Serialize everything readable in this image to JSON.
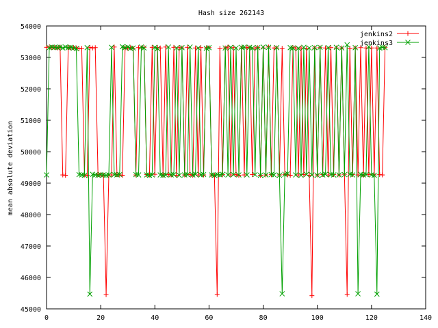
{
  "chart_data": {
    "type": "line",
    "title": "Hash size 262143",
    "xlabel": "",
    "ylabel": "mean absolute deviation",
    "xlim": [
      0,
      140
    ],
    "ylim": [
      45000,
      54000
    ],
    "x_ticks": [
      0,
      20,
      40,
      60,
      80,
      100,
      120,
      140
    ],
    "y_ticks": [
      45000,
      46000,
      47000,
      48000,
      49000,
      50000,
      51000,
      52000,
      53000,
      54000
    ],
    "grid": false,
    "legend_position": "top-right",
    "series": [
      {
        "name": "jenkins2",
        "color": "#ff0000",
        "marker": "plus",
        "x": [
          0,
          1,
          2,
          3,
          4,
          5,
          6,
          7,
          8,
          9,
          10,
          11,
          12,
          13,
          14,
          15,
          16,
          17,
          18,
          19,
          20,
          21,
          22,
          23,
          24,
          25,
          26,
          27,
          28,
          29,
          30,
          31,
          32,
          33,
          34,
          35,
          36,
          37,
          38,
          39,
          40,
          41,
          42,
          43,
          44,
          45,
          46,
          47,
          48,
          49,
          50,
          51,
          52,
          53,
          54,
          55,
          56,
          57,
          58,
          59,
          60,
          61,
          62,
          63,
          64,
          65,
          66,
          67,
          68,
          69,
          70,
          71,
          72,
          73,
          74,
          75,
          76,
          77,
          78,
          79,
          80,
          81,
          82,
          83,
          84,
          85,
          86,
          87,
          88,
          89,
          90,
          91,
          92,
          93,
          94,
          95,
          96,
          97,
          98,
          99,
          100,
          101,
          102,
          103,
          104,
          105,
          106,
          107,
          108,
          109,
          110,
          111,
          112,
          113,
          114,
          115,
          116,
          117,
          118,
          119,
          120,
          121,
          122,
          123,
          124,
          125
        ],
        "y": [
          53320,
          53330,
          53310,
          53320,
          53300,
          53330,
          49260,
          49250,
          53320,
          53300,
          53310,
          53300,
          53280,
          53290,
          49260,
          49250,
          53320,
          53300,
          53310,
          49270,
          49260,
          49250,
          45450,
          49260,
          49260,
          53330,
          49270,
          49260,
          49250,
          53300,
          53290,
          53310,
          53290,
          49260,
          53310,
          53300,
          53320,
          49270,
          49260,
          53320,
          49280,
          53310,
          53300,
          49260,
          53330,
          49270,
          49260,
          53320,
          49250,
          53310,
          53300,
          49260,
          53320,
          49270,
          49250,
          53300,
          49260,
          53310,
          49260,
          53300,
          53310,
          49260,
          49250,
          45460,
          53290,
          49270,
          53300,
          53330,
          49260,
          53310,
          49270,
          49250,
          53300,
          49260,
          53320,
          53300,
          49270,
          53300,
          53310,
          49250,
          53300,
          49260,
          53330,
          49270,
          53300,
          53300,
          49260,
          53290,
          49270,
          49260,
          49250,
          53310,
          53300,
          49260,
          53300,
          49270,
          53290,
          49250,
          45420,
          53300,
          49260,
          53310,
          49270,
          53300,
          49260,
          53310,
          49270,
          53300,
          49260,
          53300,
          49280,
          45460,
          53290,
          49270,
          53300,
          49260,
          53310,
          49250,
          53300,
          49270,
          53300,
          49260,
          53300,
          49270,
          49260,
          53320
        ]
      },
      {
        "name": "jenkins3",
        "color": "#00a000",
        "marker": "x",
        "x": [
          0,
          1,
          2,
          3,
          4,
          5,
          6,
          7,
          8,
          9,
          10,
          11,
          12,
          13,
          14,
          15,
          16,
          17,
          18,
          19,
          20,
          21,
          22,
          23,
          24,
          25,
          26,
          27,
          28,
          29,
          30,
          31,
          32,
          33,
          34,
          35,
          36,
          37,
          38,
          39,
          40,
          41,
          42,
          43,
          44,
          45,
          46,
          47,
          48,
          49,
          50,
          51,
          52,
          53,
          54,
          55,
          56,
          57,
          58,
          59,
          60,
          61,
          62,
          63,
          64,
          65,
          66,
          67,
          68,
          69,
          70,
          71,
          72,
          73,
          74,
          75,
          76,
          77,
          78,
          79,
          80,
          81,
          82,
          83,
          84,
          85,
          86,
          87,
          88,
          89,
          90,
          91,
          92,
          93,
          94,
          95,
          96,
          97,
          98,
          99,
          100,
          101,
          102,
          103,
          104,
          105,
          106,
          107,
          108,
          109,
          110,
          111,
          112,
          113,
          114,
          115,
          116,
          117,
          118,
          119,
          120,
          121,
          122,
          123,
          124,
          125
        ],
        "y": [
          49260,
          53310,
          53330,
          53320,
          53310,
          53330,
          53300,
          53330,
          53310,
          53320,
          53300,
          53280,
          49270,
          49260,
          49250,
          53310,
          45470,
          49280,
          49260,
          49250,
          49270,
          49260,
          49250,
          49260,
          53320,
          49270,
          49260,
          49270,
          53340,
          53310,
          53330,
          53290,
          53300,
          49270,
          49260,
          53330,
          53300,
          49260,
          49250,
          49260,
          53320,
          53280,
          49260,
          49250,
          49260,
          53330,
          49260,
          49270,
          53300,
          49250,
          53310,
          49260,
          49270,
          53330,
          49260,
          49280,
          53300,
          49260,
          49270,
          53290,
          53310,
          49260,
          49250,
          49270,
          49260,
          49280,
          53300,
          49260,
          53320,
          49270,
          53300,
          49260,
          53320,
          53330,
          49260,
          53320,
          53300,
          49270,
          53310,
          49250,
          53330,
          49260,
          53320,
          49270,
          49260,
          53310,
          49250,
          45480,
          49280,
          49300,
          53310,
          53300,
          49260,
          53290,
          49250,
          53320,
          49280,
          53300,
          49260,
          53310,
          49250,
          53320,
          49260,
          49280,
          53310,
          49270,
          49260,
          53320,
          49260,
          53300,
          49270,
          53400,
          49280,
          49260,
          53310,
          45480,
          49280,
          49260,
          49270,
          53340,
          49260,
          49250,
          45470,
          53300,
          53320,
          53310
        ]
      }
    ]
  }
}
